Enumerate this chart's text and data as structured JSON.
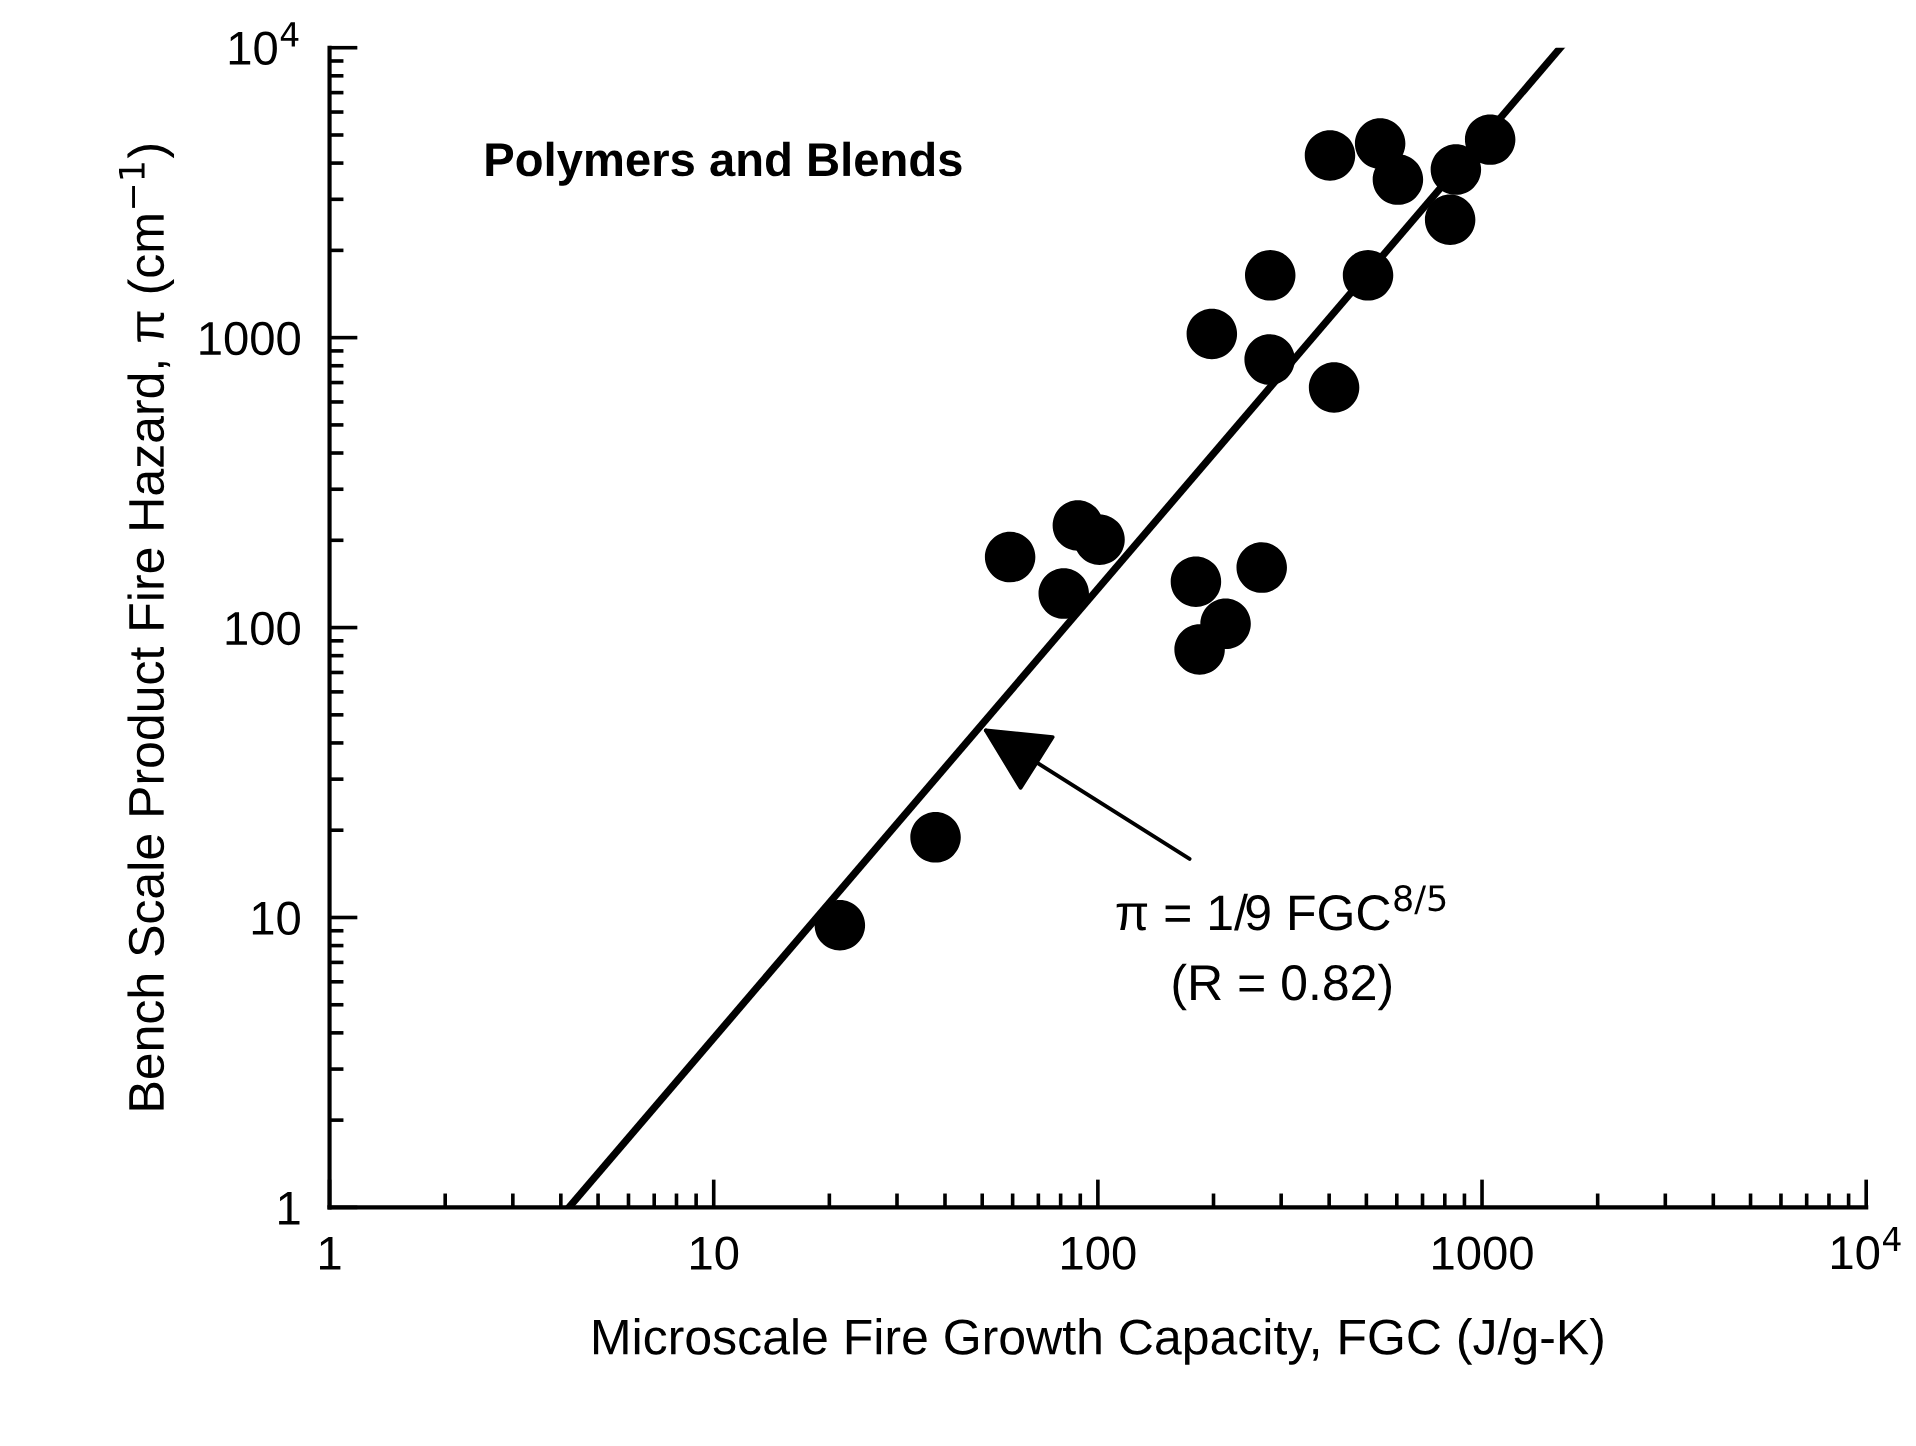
{
  "chart_data": {
    "type": "scatter",
    "xlabel": "Microscale Fire Growth Capacity, FGC (J/g-K)",
    "ylabel": "Bench Scale Product Fire Hazard, π (cm$^{−1}$)",
    "log": "xy",
    "xlim": [
      1,
      10000
    ],
    "ylim": [
      1,
      10000
    ],
    "xticks": [
      1,
      10,
      100,
      1000,
      {
        "value": 10000,
        "label": "10$^{4}$"
      }
    ],
    "yticks": [
      1,
      10,
      100,
      1000,
      {
        "value": 10000,
        "label": "10$^{4}$"
      }
    ],
    "grid": false,
    "legend": false,
    "series": [
      {
        "color": "#000000",
        "marker": "circle",
        "x": [
          21.3,
          37.8,
          59.1,
          88.7,
          101,
          81.5,
          180,
          267,
          215,
          184,
          198,
          281,
          280,
          412,
          505,
          402,
          543,
          604,
          855,
          826,
          1050
        ],
        "values": [
          9.4,
          18.9,
          175,
          225,
          201,
          131,
          144,
          161,
          103,
          84,
          1030,
          1640,
          840,
          673,
          1640,
          4250,
          4670,
          3510,
          3800,
          2550,
          4820
        ]
      },
      {
        "type": "line",
        "color": "#000000",
        "marker": "none",
        "line_style": "solid",
        "x": [
          4.2,
          1600
        ],
        "values": [
          1,
          10000
        ]
      }
    ],
    "annotations": [
      "Polymers and Blends",
      {
        "text": "π = 1/9 FGC$^{8/5}$",
        "x": 50,
        "y": 45
      },
      "(R = 0.82)"
    ]
  }
}
